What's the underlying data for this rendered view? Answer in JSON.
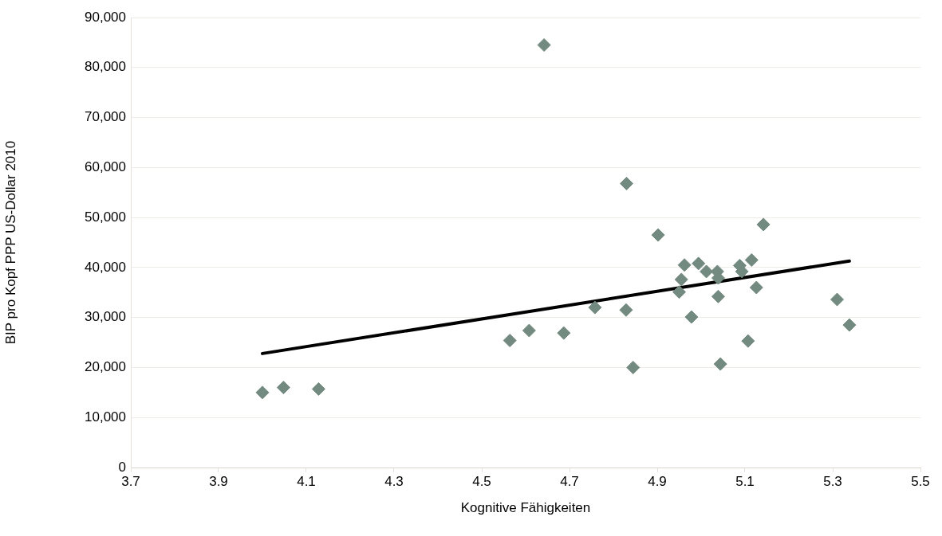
{
  "chart_data": {
    "type": "scatter",
    "xlabel": "Kognitive Fähigkeiten",
    "ylabel": "BIP pro Kopf PPP US-Dollar 2010",
    "xlim": [
      3.7,
      5.5
    ],
    "xticks": [
      3.7,
      3.9,
      4.1,
      4.3,
      4.5,
      4.7,
      4.9,
      5.1,
      5.3,
      5.5
    ],
    "ylim": [
      0,
      90000
    ],
    "yticks": [
      0,
      {
        "value": 10000,
        "label": "10,000"
      },
      {
        "value": 20000,
        "label": "20,000"
      },
      {
        "value": 30000,
        "label": "30,000"
      },
      {
        "value": 40000,
        "label": "40,000"
      },
      {
        "value": 50000,
        "label": "50,000"
      },
      {
        "value": 60000,
        "label": "60,000"
      },
      {
        "value": 70000,
        "label": "70,000"
      },
      {
        "value": 80000,
        "label": "80,000"
      },
      {
        "value": 90000,
        "label": "90,000"
      }
    ],
    "grid": "y",
    "legend": false,
    "marker": "diamond",
    "series": [
      {
        "color": "#738a80",
        "x": [
          4.0,
          4.048,
          4.128,
          4.564,
          4.608,
          4.642,
          4.687,
          4.758,
          4.83,
          4.829,
          4.845,
          4.902,
          4.95,
          4.955,
          4.962,
          4.978,
          4.994,
          5.012,
          5.037,
          5.039,
          5.039,
          5.044,
          5.088,
          5.093,
          5.107,
          5.115,
          5.126,
          5.142,
          5.31,
          5.338
        ],
        "values": [
          15000,
          16000,
          15700,
          25400,
          27400,
          84500,
          26900,
          32000,
          56800,
          31500,
          20000,
          46500,
          35100,
          37600,
          40500,
          30100,
          40800,
          39200,
          39200,
          37900,
          34200,
          20700,
          40400,
          39200,
          25300,
          41500,
          36000,
          48600,
          33600,
          28500
        ]
      },
      {
        "type": "line",
        "color": "#000000",
        "line_style": "solid",
        "marker": "none",
        "x": [
          4.0,
          5.338
        ],
        "values": [
          22800,
          41300
        ]
      }
    ]
  }
}
